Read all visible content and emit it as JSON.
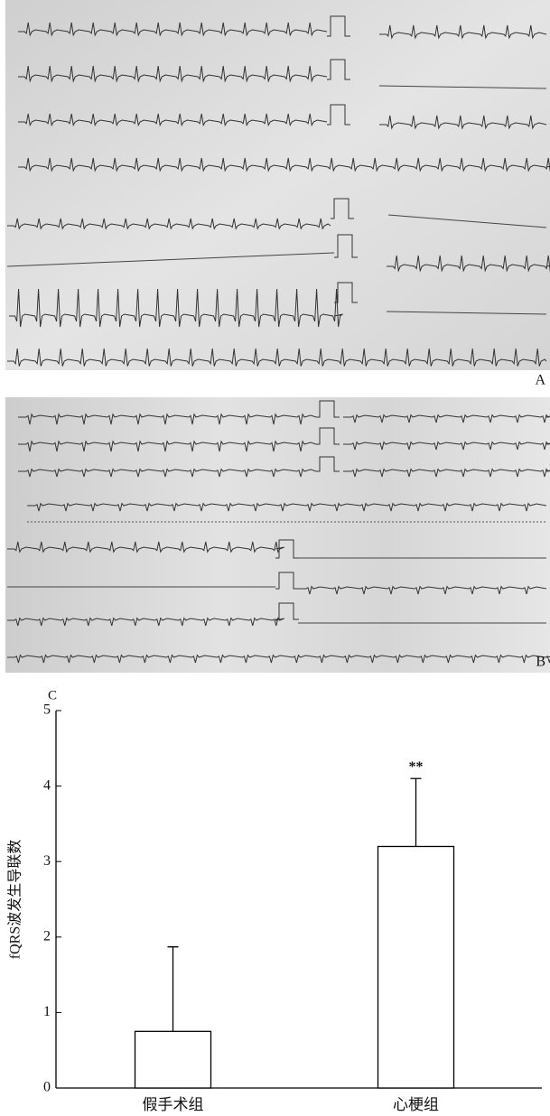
{
  "panel_labels": [
    "A",
    "B"
  ],
  "chart_data": {
    "type": "bar",
    "panel_label": "C",
    "ylabel": "fQRS波发生导联数",
    "categories": [
      "假手术组",
      "心梗组"
    ],
    "values": [
      0.75,
      3.2
    ],
    "errors": [
      1.12,
      0.9
    ],
    "color": "#ffffff",
    "annotations": [
      {
        "x": "心梗组",
        "text": "**"
      }
    ],
    "ylim": [
      0,
      5
    ],
    "yticks": [
      0,
      1,
      2,
      3,
      4,
      5
    ],
    "grid": false
  }
}
